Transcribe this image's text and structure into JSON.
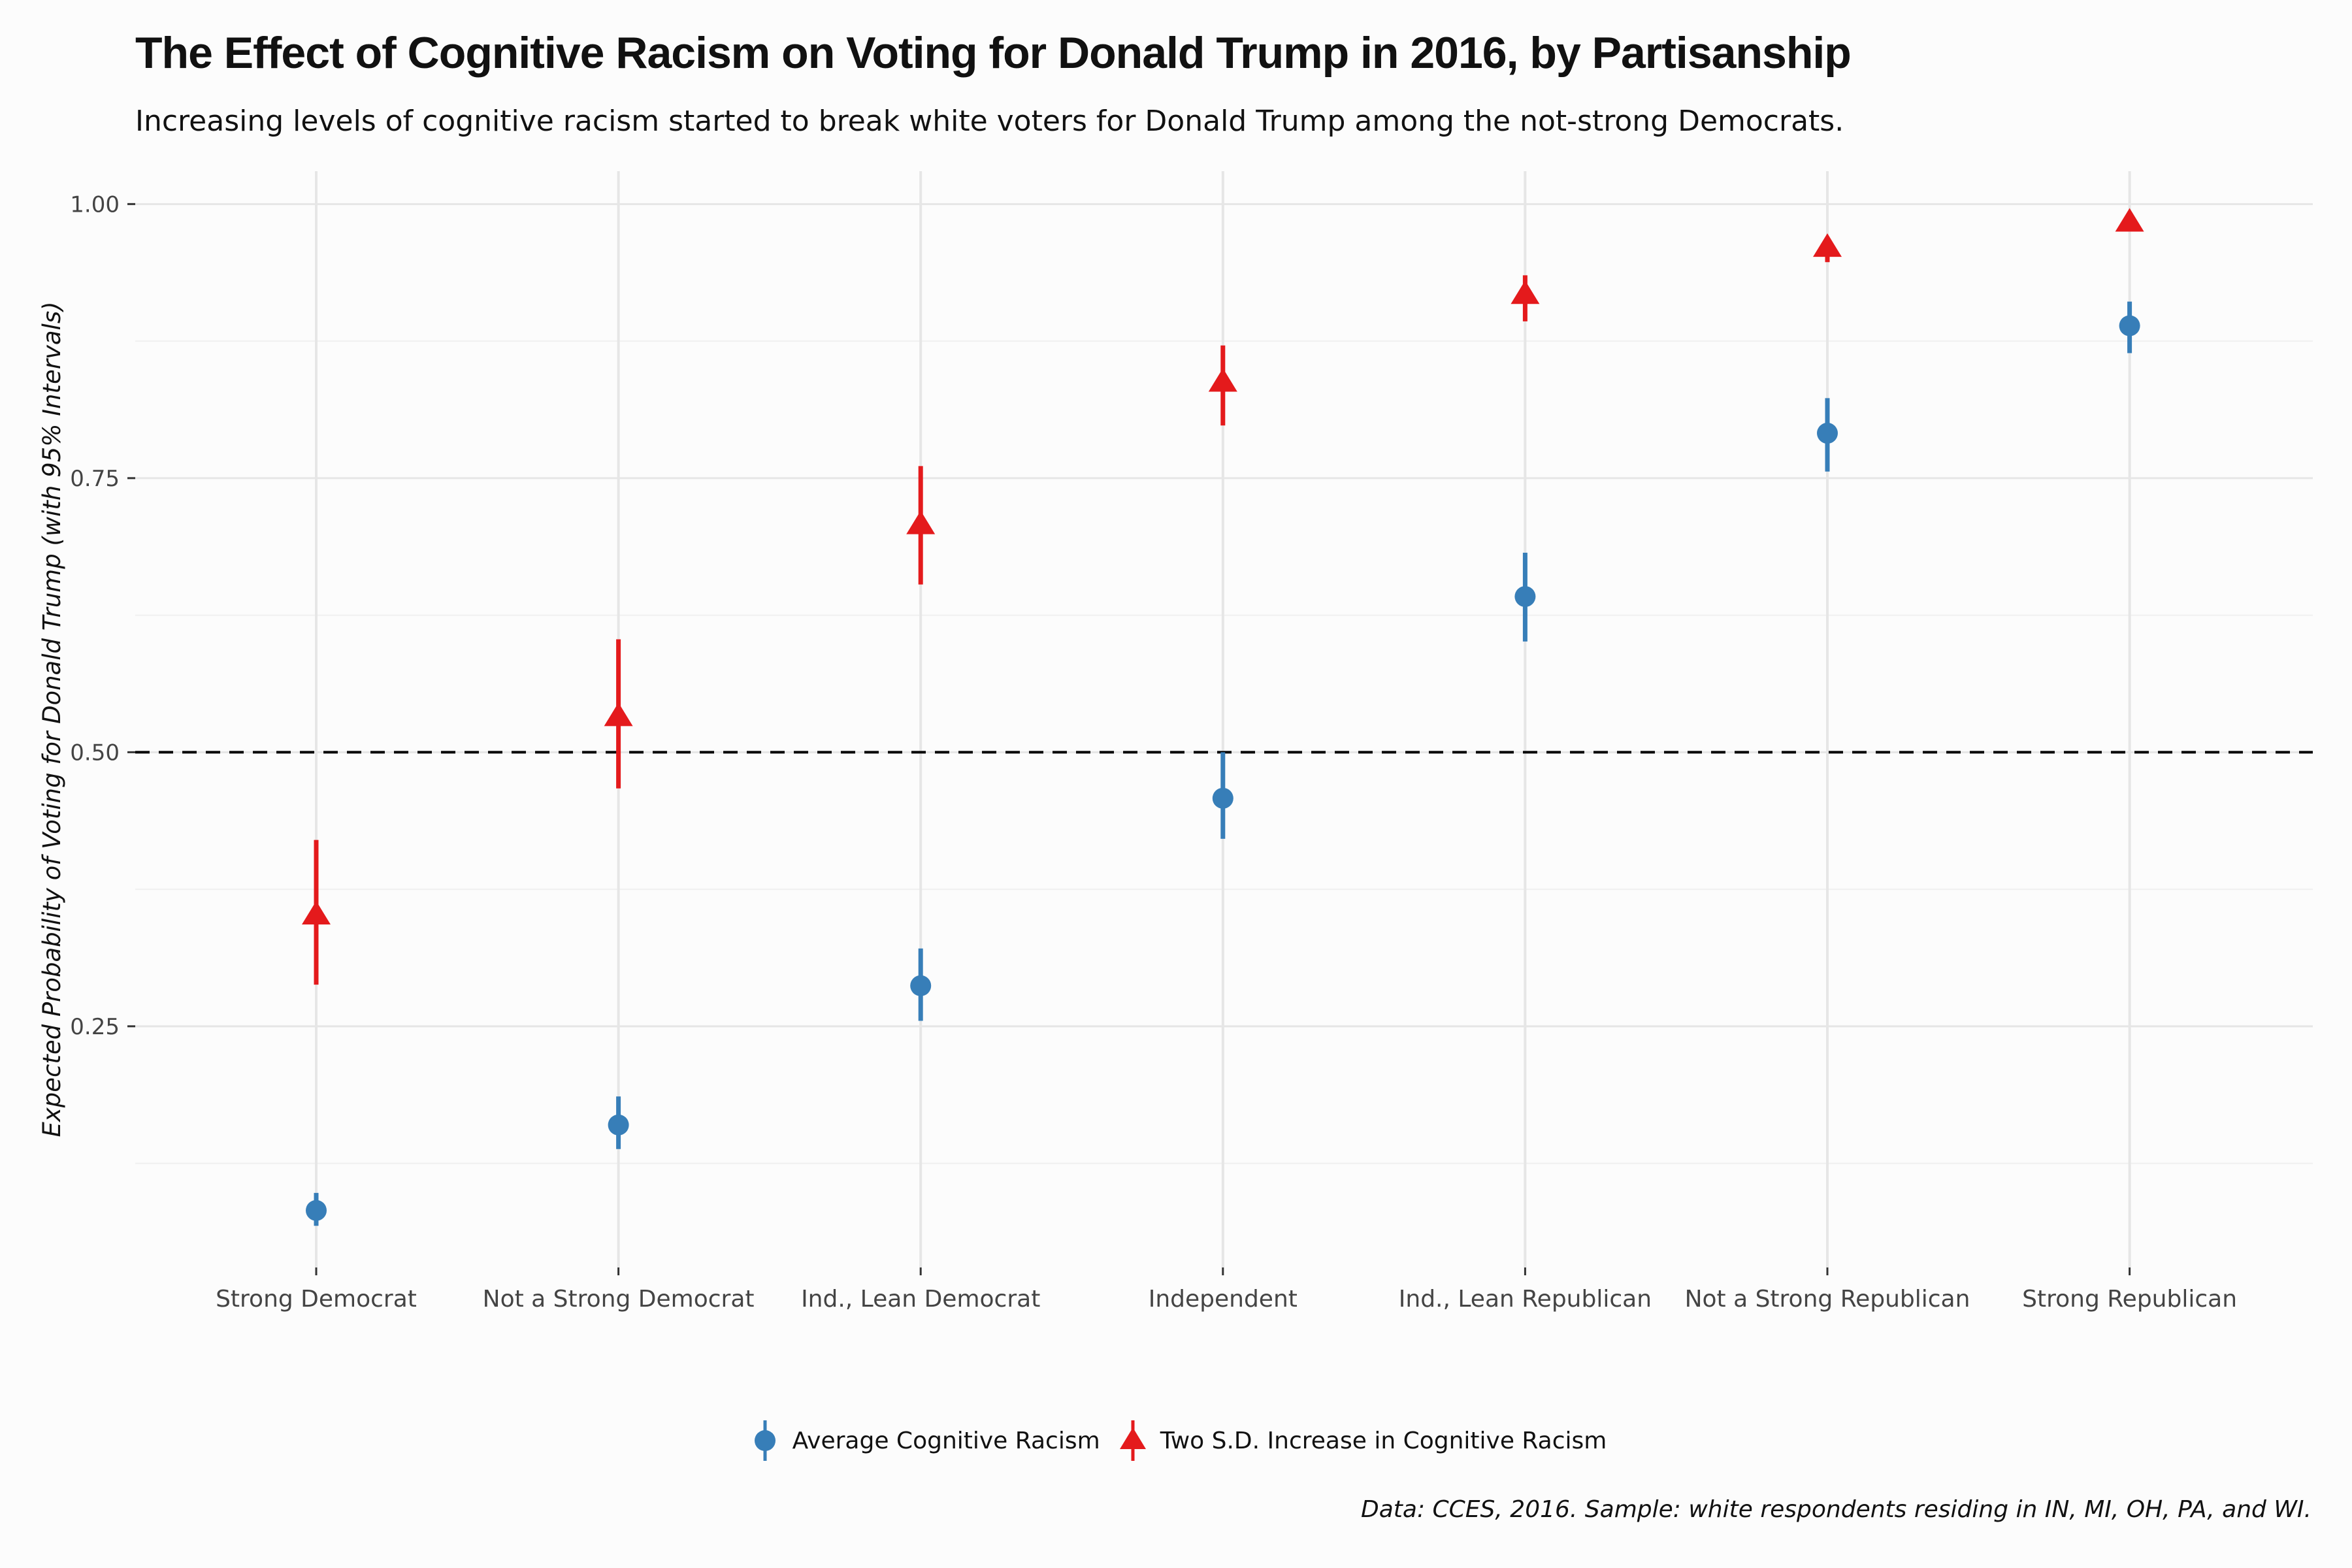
{
  "chart_data": {
    "type": "scatter",
    "title": "The Effect of Cognitive Racism on Voting for Donald Trump in 2016, by Partisanship",
    "subtitle": "Increasing levels of cognitive racism started to break white voters for Donald Trump among the not-strong Democrats.",
    "caption": "Data: CCES, 2016. Sample: white respondents residing in IN, MI, OH, PA, and WI.",
    "ylabel": "Expected Probability of Voting for Donald Trump (with 95% Intervals)",
    "xlabel": "",
    "categories": [
      "Strong Democrat",
      "Not a Strong Democrat",
      "Ind., Lean Democrat",
      "Independent",
      "Ind., Lean Republican",
      "Not a Strong Republican",
      "Strong Republican"
    ],
    "ylim": [
      0.03,
      1.03
    ],
    "yticks": [
      0.25,
      0.5,
      0.75,
      1.0
    ],
    "ytick_labels": [
      "0.25",
      "0.50",
      "0.75",
      "1.00"
    ],
    "reference_line": {
      "y": 0.5,
      "style": "dashed",
      "color": "#000000"
    },
    "grid": true,
    "legend_position": "bottom",
    "series": [
      {
        "name": "Average Cognitive Racism",
        "marker": "circle",
        "color": "#377eb8",
        "values": [
          0.082,
          0.16,
          0.287,
          0.458,
          0.642,
          0.791,
          0.889
        ],
        "lower": [
          0.068,
          0.138,
          0.255,
          0.421,
          0.601,
          0.756,
          0.864
        ],
        "upper": [
          0.098,
          0.186,
          0.321,
          0.5,
          0.682,
          0.823,
          0.911
        ]
      },
      {
        "name": "Two S.D. Increase in Cognitive Racism",
        "marker": "triangle",
        "color": "#e41a1c",
        "values": [
          0.351,
          0.532,
          0.707,
          0.837,
          0.917,
          0.96,
          0.983
        ],
        "lower": [
          0.288,
          0.467,
          0.653,
          0.798,
          0.893,
          0.947,
          0.975
        ],
        "upper": [
          0.42,
          0.603,
          0.761,
          0.871,
          0.935,
          0.969,
          0.988
        ]
      }
    ]
  }
}
